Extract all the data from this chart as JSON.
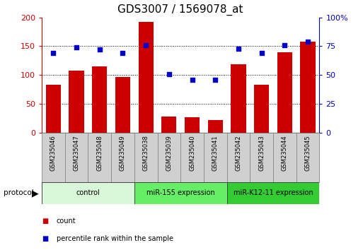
{
  "title": "GDS3007 / 1569078_at",
  "samples": [
    "GSM235046",
    "GSM235047",
    "GSM235048",
    "GSM235049",
    "GSM235038",
    "GSM235039",
    "GSM235040",
    "GSM235041",
    "GSM235042",
    "GSM235043",
    "GSM235044",
    "GSM235045"
  ],
  "counts": [
    83,
    108,
    115,
    97,
    192,
    28,
    27,
    22,
    119,
    83,
    140,
    158
  ],
  "percentile": [
    69,
    74,
    72,
    69,
    76,
    51,
    46,
    46,
    73,
    69,
    76,
    79
  ],
  "groups": [
    {
      "label": "control",
      "start": 0,
      "end": 4,
      "color": "#d9f7d9"
    },
    {
      "label": "miR-155 expression",
      "start": 4,
      "end": 8,
      "color": "#66ee66"
    },
    {
      "label": "miR-K12-11 expression",
      "start": 8,
      "end": 12,
      "color": "#33cc33"
    }
  ],
  "bar_color": "#cc0000",
  "dot_color": "#0000cc",
  "left_ylim": [
    0,
    200
  ],
  "right_ylim": [
    0,
    100
  ],
  "left_yticks": [
    0,
    50,
    100,
    150,
    200
  ],
  "right_yticks": [
    0,
    25,
    50,
    75,
    100
  ],
  "left_yticklabels": [
    "0",
    "50",
    "100",
    "150",
    "200"
  ],
  "right_yticklabels": [
    "0",
    "25",
    "50",
    "75",
    "100%"
  ],
  "grid_values": [
    50,
    100,
    150
  ],
  "title_fontsize": 11,
  "axis_color_left": "#cc0000",
  "axis_color_right": "#0000cc",
  "sample_box_color": "#d0d0d0",
  "legend_items": [
    {
      "label": "count",
      "color": "#cc0000"
    },
    {
      "label": "percentile rank within the sample",
      "color": "#0000cc"
    }
  ]
}
